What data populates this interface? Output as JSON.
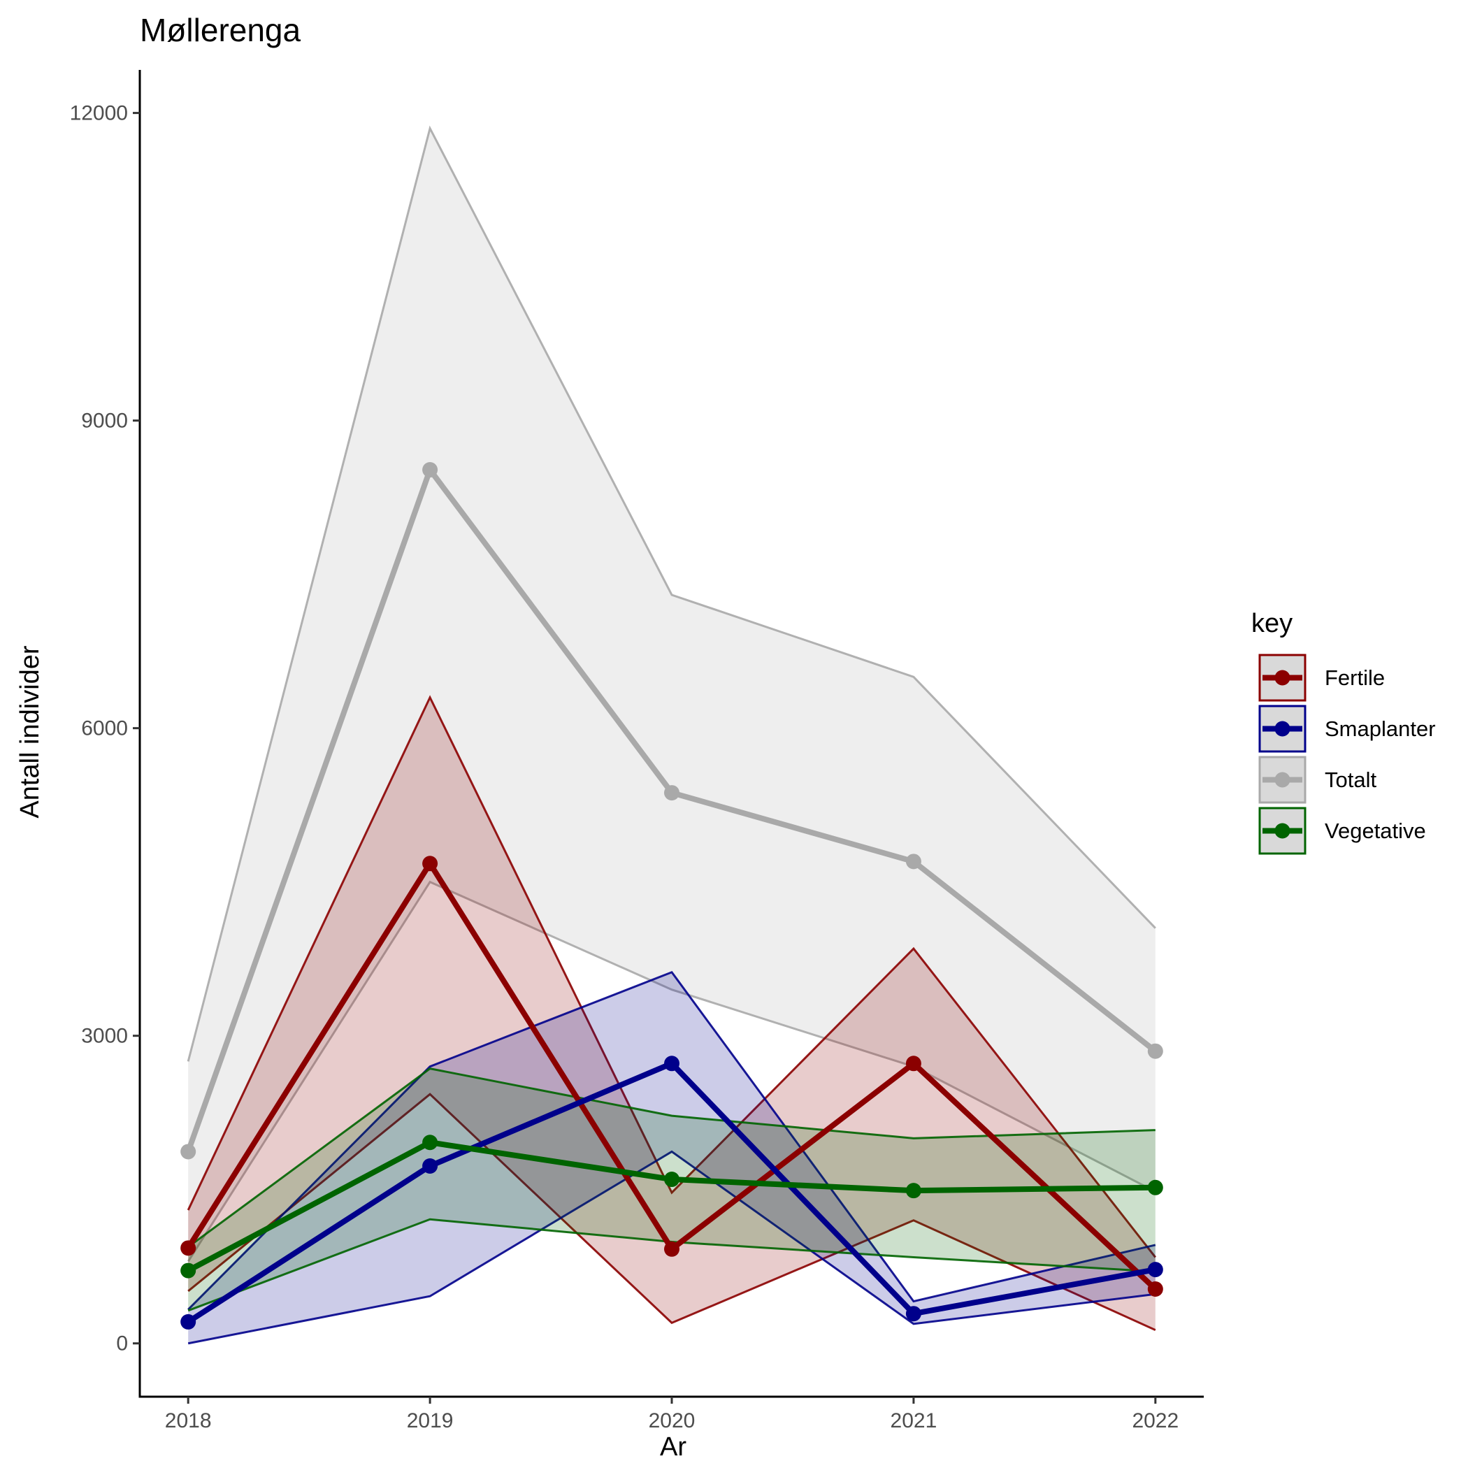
{
  "chart_data": {
    "type": "line",
    "title": "Møllerenga",
    "xlabel": "Ar",
    "ylabel": "Antall individer",
    "x": [
      2018,
      2019,
      2020,
      2021,
      2022
    ],
    "x_tick_labels": [
      "2018",
      "2019",
      "2020",
      "2021",
      "2022"
    ],
    "y_ticks": [
      0,
      3000,
      6000,
      9000,
      12000
    ],
    "y_tick_labels": [
      "0",
      "3000",
      "6000",
      "9000",
      "12000"
    ],
    "ylim": [
      -520,
      12420
    ],
    "xlim": [
      2017.8,
      2022.2
    ],
    "grid": false,
    "legend": {
      "title": "key",
      "placement": "right"
    },
    "series": [
      {
        "name": "Totalt",
        "color": "#a9a9a9",
        "values": [
          1870,
          8520,
          5370,
          4700,
          2850
        ],
        "lower": [
          800,
          4500,
          3450,
          2700,
          1480
        ],
        "upper": [
          2750,
          11850,
          7300,
          6500,
          4050
        ]
      },
      {
        "name": "Fertile",
        "color": "#8b0000",
        "values": [
          930,
          4680,
          920,
          2730,
          530
        ],
        "lower": [
          510,
          2430,
          200,
          1200,
          130
        ],
        "upper": [
          1300,
          6300,
          1470,
          3850,
          840
        ]
      },
      {
        "name": "Smaplanter",
        "color": "#00008b",
        "values": [
          210,
          1730,
          2730,
          290,
          720
        ],
        "lower": [
          0,
          460,
          1870,
          190,
          480
        ],
        "upper": [
          330,
          2700,
          3620,
          410,
          960
        ]
      },
      {
        "name": "Vegetative",
        "color": "#006400",
        "values": [
          710,
          1960,
          1600,
          1490,
          1520
        ],
        "lower": [
          320,
          1210,
          990,
          840,
          700
        ],
        "upper": [
          940,
          2680,
          2220,
          2000,
          2080
        ]
      }
    ],
    "legend_order": [
      "Fertile",
      "Smaplanter",
      "Totalt",
      "Vegetative"
    ]
  }
}
